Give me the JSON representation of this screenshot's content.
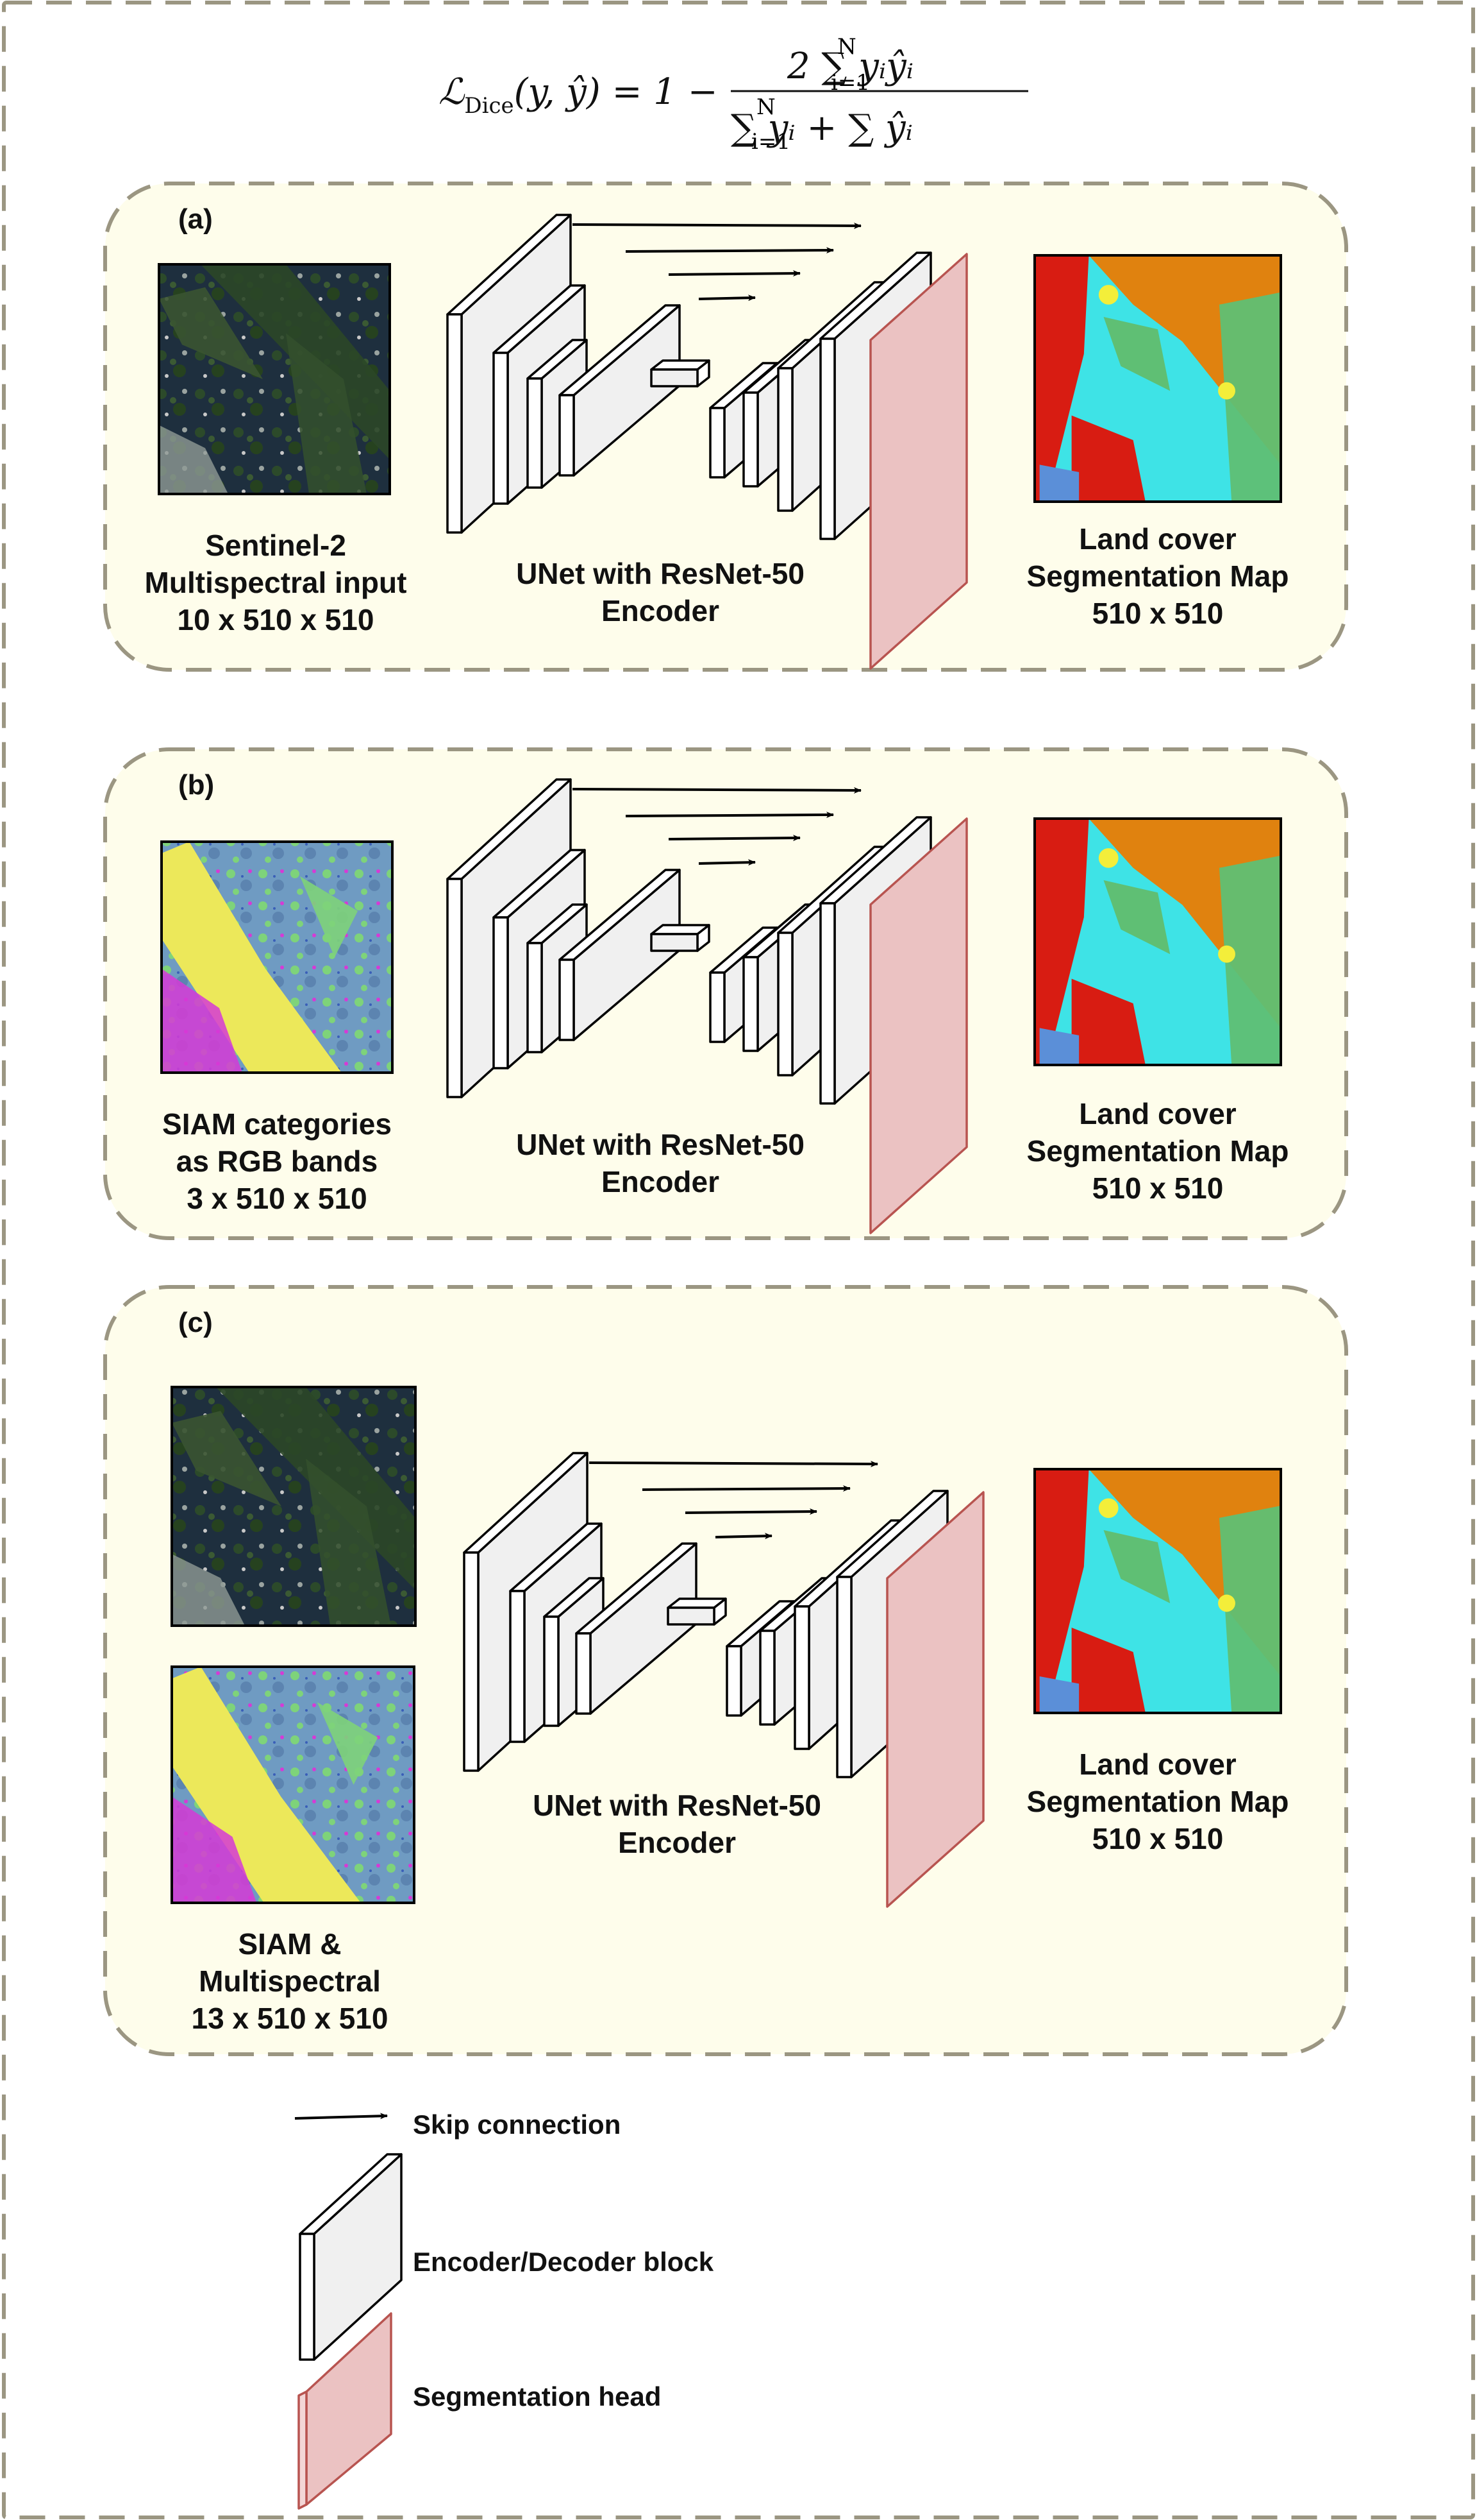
{
  "equation": {
    "lhs": "ℒ",
    "lhs_sub": "Dice",
    "lhs_args": "(y, ŷ) = 1 −",
    "numerator": "2 ∑ yᵢŷᵢ",
    "denominator": "∑ yᵢ + ∑ ŷᵢ",
    "sum_lower": "i=1",
    "sum_upper": "N"
  },
  "panels": [
    {
      "tag": "(a)",
      "inputs": [
        {
          "kind": "satellite",
          "caption": [
            "Sentinel-2",
            "Multispectral input",
            "10 x 510 x 510"
          ]
        }
      ],
      "model_caption": [
        "UNet with ResNet-50",
        "Encoder"
      ],
      "output_caption": [
        "Land cover",
        "Segmentation Map",
        "510 x 510"
      ]
    },
    {
      "tag": "(b)",
      "inputs": [
        {
          "kind": "siam",
          "caption": [
            "SIAM categories",
            "as RGB bands",
            "3 x 510 x 510"
          ]
        }
      ],
      "model_caption": [
        "UNet with ResNet-50",
        "Encoder"
      ],
      "output_caption": [
        "Land cover",
        "Segmentation Map",
        "510 x 510"
      ]
    },
    {
      "tag": "(c)",
      "inputs": [
        {
          "kind": "satellite",
          "caption": []
        },
        {
          "kind": "siam",
          "caption": [
            "SIAM &",
            "Multispectral",
            "13 x 510 x 510"
          ]
        }
      ],
      "model_caption": [
        "UNet with ResNet-50",
        "Encoder"
      ],
      "output_caption": [
        "Land cover",
        "Segmentation Map",
        "510 x 510"
      ]
    }
  ],
  "legend": {
    "skip": "Skip connection",
    "block": "Encoder/Decoder block",
    "head": "Segmentation head"
  },
  "colors": {
    "panel_fill": "#fefdeb",
    "dash_stroke": "#9b9682",
    "block_fill": "#f0f0f0",
    "head_fill": "#ebc2c2",
    "head_stroke": "#b85450",
    "map_water": "#3ee3e6",
    "map_orange": "#e0820f",
    "map_green": "#5fbf74",
    "map_red": "#d81c12",
    "map_yellow": "#f3ee3a",
    "map_blue": "#5b8fd8",
    "siam_yellow": "#ece85a",
    "siam_blue": "#6f9bc2",
    "siam_green": "#7ed37a",
    "siam_magenta": "#d63ad6"
  }
}
